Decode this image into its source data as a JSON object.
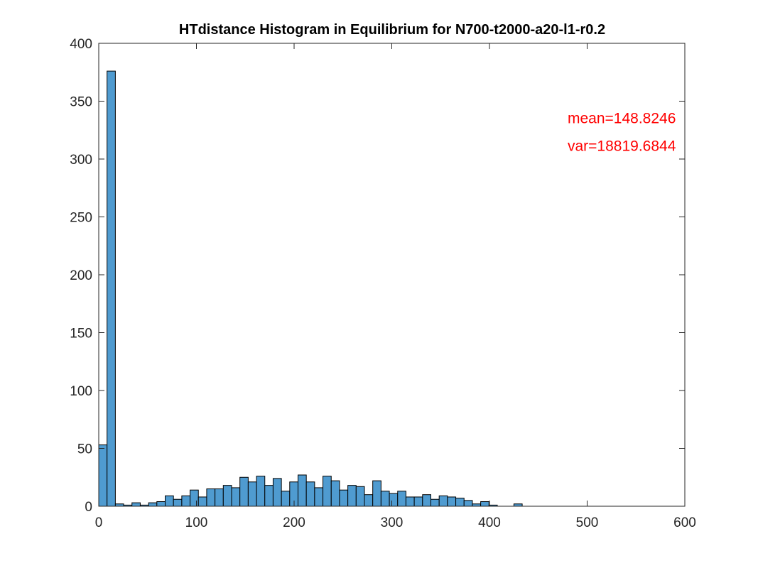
{
  "chart_data": {
    "type": "bar",
    "title": "HTdistance Histogram in Equilibrium for N700-t2000-a20-l1-r0.2",
    "xlabel": "",
    "ylabel": "",
    "xlim": [
      0,
      600
    ],
    "ylim": [
      0,
      400
    ],
    "xticks": [
      0,
      100,
      200,
      300,
      400,
      500,
      600
    ],
    "yticks": [
      0,
      50,
      100,
      150,
      200,
      250,
      300,
      350,
      400
    ],
    "xtick_labels": [
      "0",
      "100",
      "200",
      "300",
      "400",
      "500",
      "600"
    ],
    "ytick_labels": [
      "0",
      "50",
      "100",
      "150",
      "200",
      "250",
      "300",
      "350",
      "400"
    ],
    "bin_width": 8.5,
    "bin_start": 0,
    "values": [
      53,
      376,
      2,
      1,
      3,
      1,
      3,
      4,
      9,
      6,
      9,
      14,
      8,
      15,
      15,
      18,
      16,
      25,
      21,
      26,
      18,
      24,
      13,
      21,
      27,
      21,
      16,
      26,
      22,
      14,
      18,
      17,
      10,
      22,
      13,
      11,
      13,
      8,
      8,
      10,
      6,
      9,
      8,
      7,
      5,
      2,
      4,
      1,
      0,
      0,
      2
    ],
    "bar_color": "#4f9bd0",
    "edge_color": "#000000",
    "grid": false,
    "annotations": [
      {
        "text": "mean=148.8246",
        "x": 480,
        "y": 331,
        "color": "#ff0000"
      },
      {
        "text": "var=18819.6844",
        "x": 480,
        "y": 307,
        "color": "#ff0000"
      }
    ]
  }
}
